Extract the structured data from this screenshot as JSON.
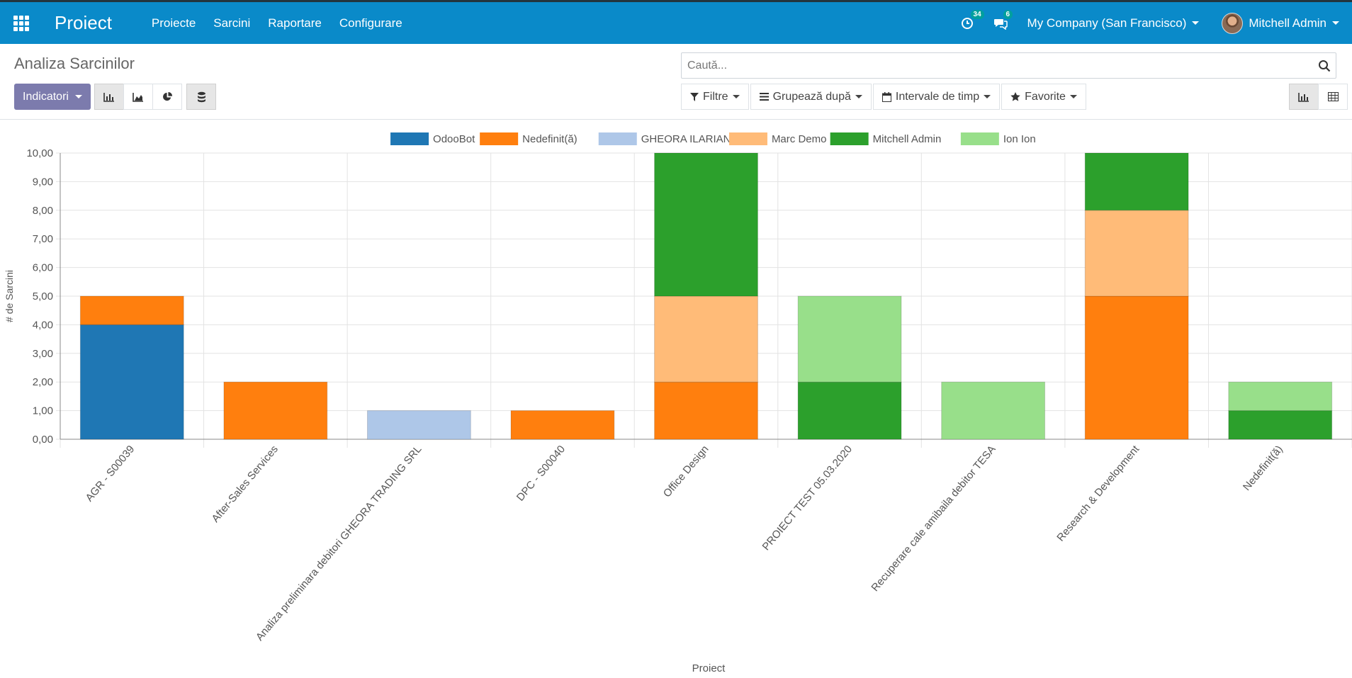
{
  "navbar": {
    "brand": "Proiect",
    "menu": [
      "Proiecte",
      "Sarcini",
      "Raportare",
      "Configurare"
    ],
    "activity_count": "34",
    "messages_count": "6",
    "company": "My Company (San Francisco)",
    "user": "Mitchell Admin"
  },
  "control_panel": {
    "title": "Analiza Sarcinilor",
    "measures_label": "Indicatori",
    "search_placeholder": "Caută...",
    "filters_label": "Filtre",
    "groupby_label": "Grupează după",
    "timeranges_label": "Intervale de timp",
    "favorites_label": "Favorite"
  },
  "chart_data": {
    "type": "bar",
    "stacked": true,
    "ylabel": "# de Sarcini",
    "xlabel": "Proiect",
    "ylim": [
      0,
      10
    ],
    "yticks": [
      "0,00",
      "1,00",
      "2,00",
      "3,00",
      "4,00",
      "5,00",
      "6,00",
      "7,00",
      "8,00",
      "9,00",
      "10,00"
    ],
    "legend_position": "top",
    "categories": [
      "AGR - S00039",
      "After-Sales Services",
      "Analiza preliminara debitori GHEORA TRADING SRL",
      "DPC - S00040",
      "Office Design",
      "PROIECT TEST 05.03.2020",
      "Recuperare cale amibaila debitor TESA",
      "Research & Development",
      "Nedefinit(ă)"
    ],
    "series": [
      {
        "name": "OdooBot",
        "color": "#1f77b4",
        "values": [
          4,
          0,
          0,
          0,
          0,
          0,
          0,
          0,
          0
        ]
      },
      {
        "name": "Nedefinit(ă)",
        "color": "#ff7f0e",
        "values": [
          1,
          2,
          0,
          1,
          2,
          0,
          0,
          5,
          0
        ]
      },
      {
        "name": "GHEORA ILARIAN",
        "color": "#aec7e8",
        "values": [
          0,
          0,
          1,
          0,
          0,
          0,
          0,
          0,
          0
        ]
      },
      {
        "name": "Marc Demo",
        "color": "#ffbb78",
        "values": [
          0,
          0,
          0,
          0,
          3,
          0,
          0,
          3,
          0
        ]
      },
      {
        "name": "Mitchell Admin",
        "color": "#2ca02c",
        "values": [
          0,
          0,
          0,
          0,
          5,
          2,
          0,
          2,
          1
        ]
      },
      {
        "name": "Ion Ion",
        "color": "#98df8a",
        "values": [
          0,
          0,
          0,
          0,
          0,
          3,
          2,
          0,
          1
        ]
      }
    ]
  }
}
